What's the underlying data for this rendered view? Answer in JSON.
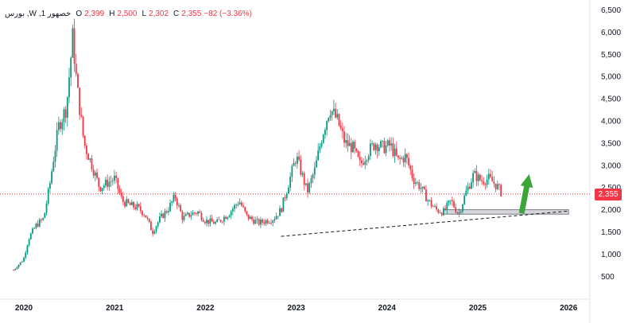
{
  "legend": {
    "symbol": "بورس ,W ,خصهور 1",
    "o_key": "O",
    "o_val": "2,399",
    "h_key": "H",
    "h_val": "2,500",
    "l_key": "L",
    "l_val": "2,302",
    "c_key": "C",
    "c_val": "2,355",
    "change": "−82 (−3.36%)"
  },
  "last_price_label": "2,355",
  "colors": {
    "up": "#089981",
    "down": "#f23645",
    "arrow": "#3aa63a",
    "zone": "#b2b5be"
  },
  "chart_data": {
    "type": "candlestick",
    "interval": "W",
    "y_axis": {
      "ticks": [
        500,
        1000,
        1500,
        2000,
        2500,
        3000,
        3500,
        4000,
        4500,
        5000,
        5500,
        6000,
        6500
      ],
      "tick_labels": [
        "500",
        "1,000",
        "1,500",
        "2,000",
        "2,500",
        "3,000",
        "3,500",
        "4,000",
        "4,500",
        "5,000",
        "5,500",
        "6,000",
        "6,500"
      ],
      "range": [
        0,
        6500
      ],
      "position": "right"
    },
    "x_axis": {
      "ticks": [
        2020,
        2021,
        2022,
        2023,
        2024,
        2025,
        2026
      ],
      "tick_labels": [
        "2020",
        "2021",
        "2022",
        "2023",
        "2024",
        "2025",
        "2026"
      ],
      "range": [
        "2019-11",
        "2026-06"
      ]
    },
    "last_close": 2355,
    "close_path": [
      [
        "2019-11-20",
        640
      ],
      [
        "2019-12-30",
        880
      ],
      [
        "2020-01-20",
        1350
      ],
      [
        "2020-02-20",
        1650
      ],
      [
        "2020-03-20",
        1800
      ],
      [
        "2020-04-15",
        2600
      ],
      [
        "2020-04-30",
        3200
      ],
      [
        "2020-05-20",
        3900
      ],
      [
        "2020-06-20",
        4300
      ],
      [
        "2020-07-15",
        5900
      ],
      [
        "2020-08-01",
        4800
      ],
      [
        "2020-08-30",
        3500
      ],
      [
        "2020-10-01",
        3000
      ],
      [
        "2020-11-01",
        2500
      ],
      [
        "2020-12-01",
        2600
      ],
      [
        "2021-01-01",
        2700
      ],
      [
        "2021-02-01",
        2200
      ],
      [
        "2021-03-01",
        2100
      ],
      [
        "2021-04-01",
        2050
      ],
      [
        "2021-05-01",
        1900
      ],
      [
        "2021-06-01",
        1500
      ],
      [
        "2021-07-01",
        1800
      ],
      [
        "2021-08-01",
        2000
      ],
      [
        "2021-09-01",
        2300
      ],
      [
        "2021-10-01",
        1800
      ],
      [
        "2021-11-01",
        1900
      ],
      [
        "2021-12-01",
        1950
      ],
      [
        "2022-01-01",
        1750
      ],
      [
        "2022-02-15",
        1700
      ],
      [
        "2022-04-01",
        1900
      ],
      [
        "2022-05-15",
        2200
      ],
      [
        "2022-06-15",
        1850
      ],
      [
        "2022-08-01",
        1700
      ],
      [
        "2022-10-01",
        1800
      ],
      [
        "2022-11-01",
        2000
      ],
      [
        "2022-12-01",
        2600
      ],
      [
        "2023-01-01",
        3200
      ],
      [
        "2023-02-15",
        2400
      ],
      [
        "2023-03-15",
        2900
      ],
      [
        "2023-04-15",
        3700
      ],
      [
        "2023-05-15",
        4300
      ],
      [
        "2023-06-15",
        4000
      ],
      [
        "2023-07-15",
        3500
      ],
      [
        "2023-08-15",
        3400
      ],
      [
        "2023-09-15",
        3000
      ],
      [
        "2023-10-15",
        3300
      ],
      [
        "2023-11-15",
        3500
      ],
      [
        "2023-12-15",
        3400
      ],
      [
        "2024-01-15",
        3450
      ],
      [
        "2024-02-15",
        3100
      ],
      [
        "2024-03-15",
        3200
      ],
      [
        "2024-04-15",
        2700
      ],
      [
        "2024-05-15",
        2500
      ],
      [
        "2024-06-15",
        2200
      ],
      [
        "2024-07-15",
        2000
      ],
      [
        "2024-08-15",
        1950
      ],
      [
        "2024-09-15",
        2200
      ],
      [
        "2024-10-15",
        1900
      ],
      [
        "2024-11-15",
        2400
      ],
      [
        "2024-12-15",
        2800
      ],
      [
        "2025-01-15",
        2650
      ],
      [
        "2025-02-15",
        2700
      ],
      [
        "2025-03-15",
        2550
      ],
      [
        "2025-04-08",
        2355
      ]
    ],
    "annotations": {
      "trendline": {
        "from": [
          "2022-11-01",
          1400
        ],
        "to": [
          "2026-01-01",
          1970
        ],
        "style": "dashed"
      },
      "support_zone": {
        "x_from": "2024-08-15",
        "x_to": "2026-01-01",
        "y_from": 1900,
        "y_to": 2000
      },
      "arrow": {
        "from": [
          "2025-06-25",
          1920
        ],
        "to": [
          "2025-07-25",
          2800
        ]
      },
      "last_price_line": 2355
    }
  }
}
